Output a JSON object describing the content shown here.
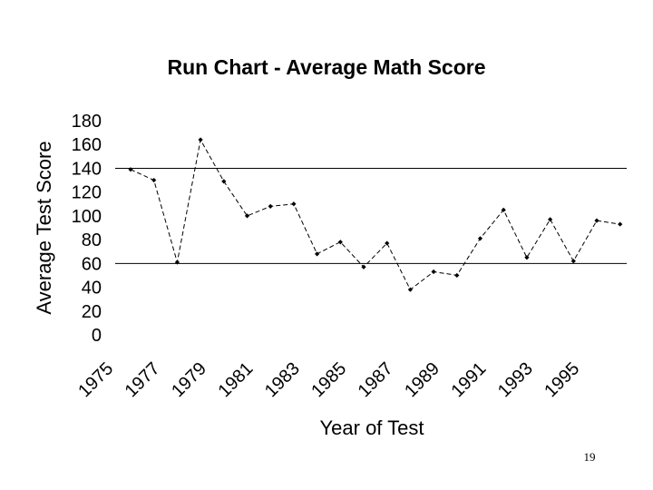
{
  "slide": {
    "page_number": "19"
  },
  "chart_data": {
    "type": "line",
    "title": "Run Chart - Average Math Score",
    "xlabel": "Year of Test",
    "ylabel": "Average Test Score",
    "ylim": [
      0,
      180
    ],
    "yticks": [
      "0",
      "20",
      "40",
      "60",
      "80",
      "100",
      "120",
      "140",
      "160",
      "180"
    ],
    "xtick_labels": [
      "1975",
      "1977",
      "1979",
      "1981",
      "1983",
      "1985",
      "1987",
      "1989",
      "1991",
      "1993",
      "1995"
    ],
    "x": [
      1975,
      1976,
      1977,
      1978,
      1979,
      1980,
      1981,
      1982,
      1983,
      1984,
      1985,
      1986,
      1987,
      1988,
      1989,
      1990,
      1991,
      1992,
      1993,
      1994,
      1995,
      1996
    ],
    "series": [
      {
        "values": [
          139,
          130,
          61,
          164,
          129,
          100,
          108,
          110,
          68,
          78,
          57,
          77,
          38,
          53,
          50,
          81,
          105,
          65,
          97,
          62,
          96,
          93
        ]
      }
    ],
    "grid": "horizontal gridlines at 60 and 140",
    "gridlines_at": [
      60,
      140
    ],
    "colors": {
      "line": "#000000",
      "marker": "#000000",
      "grid": "#000000"
    },
    "line_style": "dashed",
    "marker": "diamond",
    "legend": "none"
  }
}
